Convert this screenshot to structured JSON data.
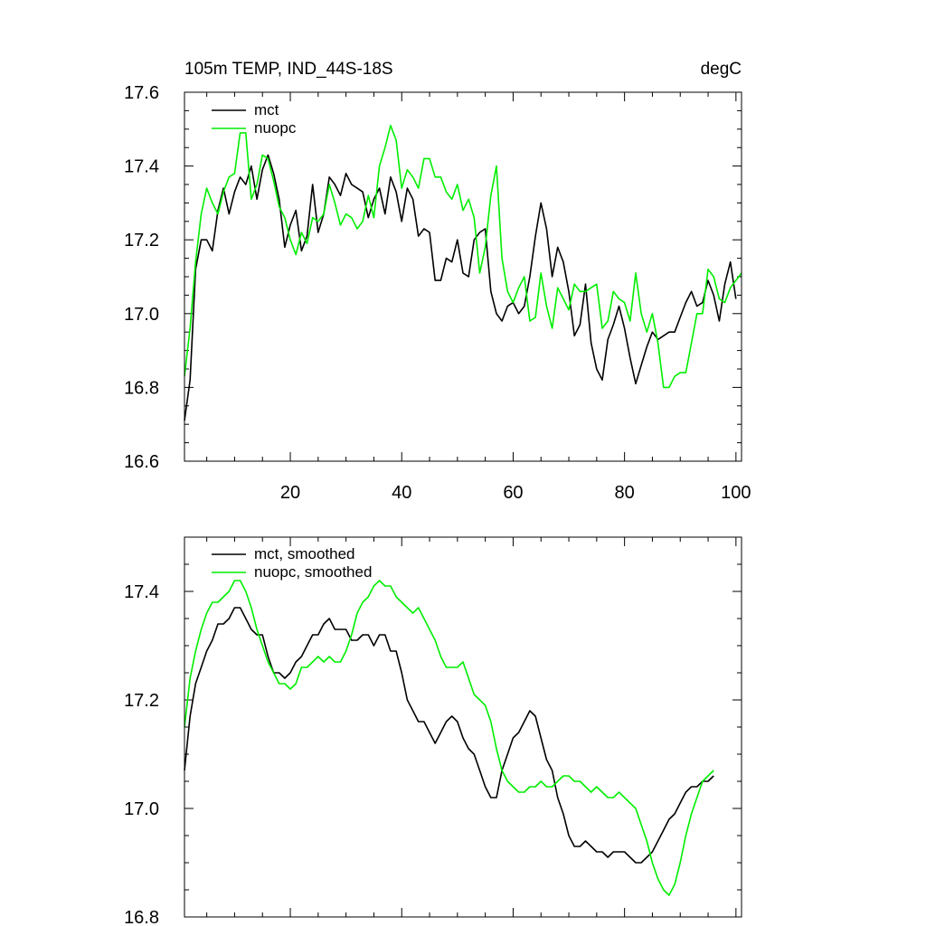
{
  "chart_data": [
    {
      "type": "line",
      "title": "105m TEMP, IND_44S-18S",
      "units": "degC",
      "xlim": [
        1,
        101
      ],
      "ylim": [
        16.6,
        17.6
      ],
      "x_ticks": [
        20,
        40,
        60,
        80,
        100
      ],
      "y_ticks": [
        16.6,
        16.8,
        17.0,
        17.2,
        17.4,
        17.6
      ],
      "y_tick_labels": [
        "16.6",
        "16.8",
        "17.0",
        "17.2",
        "17.4",
        "17.6"
      ],
      "grid": false,
      "legend_position": "top-left",
      "series": [
        {
          "name": "mct",
          "color": "#000000",
          "x_start": 1,
          "values": [
            16.71,
            16.82,
            17.12,
            17.2,
            17.2,
            17.17,
            17.28,
            17.34,
            17.27,
            17.33,
            17.37,
            17.35,
            17.4,
            17.31,
            17.39,
            17.43,
            17.38,
            17.31,
            17.18,
            17.24,
            17.28,
            17.17,
            17.21,
            17.35,
            17.22,
            17.27,
            17.37,
            17.35,
            17.32,
            17.38,
            17.35,
            17.34,
            17.33,
            17.26,
            17.31,
            17.34,
            17.27,
            17.37,
            17.33,
            17.25,
            17.34,
            17.31,
            17.21,
            17.23,
            17.22,
            17.09,
            17.09,
            17.15,
            17.14,
            17.2,
            17.11,
            17.1,
            17.2,
            17.22,
            17.23,
            17.06,
            17.0,
            16.98,
            17.02,
            17.03,
            17.0,
            17.02,
            17.1,
            17.21,
            17.3,
            17.23,
            17.1,
            17.18,
            17.14,
            17.06,
            16.94,
            16.97,
            17.08,
            16.92,
            16.85,
            16.82,
            16.93,
            16.97,
            17.02,
            16.96,
            16.88,
            16.81,
            16.86,
            16.91,
            16.95,
            16.93,
            16.94,
            16.95,
            16.95,
            16.99,
            17.03,
            17.06,
            17.02,
            17.03,
            17.09,
            17.05,
            16.98,
            17.08,
            17.14,
            17.04
          ]
        },
        {
          "name": "nuopc",
          "color": "#00ee00",
          "x_start": 1,
          "values": [
            16.83,
            16.96,
            17.14,
            17.27,
            17.34,
            17.3,
            17.27,
            17.33,
            17.37,
            17.38,
            17.49,
            17.49,
            17.31,
            17.35,
            17.43,
            17.42,
            17.36,
            17.29,
            17.26,
            17.2,
            17.16,
            17.22,
            17.19,
            17.26,
            17.25,
            17.27,
            17.35,
            17.3,
            17.24,
            17.27,
            17.26,
            17.23,
            17.25,
            17.32,
            17.26,
            17.4,
            17.45,
            17.51,
            17.47,
            17.34,
            17.39,
            17.37,
            17.34,
            17.42,
            17.42,
            17.37,
            17.37,
            17.33,
            17.31,
            17.35,
            17.28,
            17.31,
            17.26,
            17.11,
            17.18,
            17.32,
            17.4,
            17.15,
            17.06,
            17.03,
            17.07,
            17.1,
            16.98,
            16.99,
            17.11,
            17.02,
            16.96,
            17.07,
            17.04,
            17.01,
            17.08,
            17.06,
            17.06,
            17.07,
            17.08,
            16.96,
            16.98,
            17.06,
            17.04,
            17.03,
            16.98,
            17.11,
            17.0,
            16.95,
            17.0,
            16.92,
            16.8,
            16.8,
            16.83,
            16.84,
            16.84,
            16.92,
            17.0,
            17.0,
            17.12,
            17.1,
            17.04,
            17.03,
            17.07,
            17.09,
            17.11
          ]
        }
      ]
    },
    {
      "type": "line",
      "xlim": [
        1,
        101
      ],
      "ylim": [
        16.8,
        17.5
      ],
      "x_ticks": [
        20,
        40,
        60,
        80,
        100
      ],
      "y_ticks": [
        16.8,
        17.0,
        17.2,
        17.4
      ],
      "y_tick_labels": [
        "16.8",
        "17.0",
        "17.2",
        "17.4"
      ],
      "grid": false,
      "legend_position": "top-left",
      "series": [
        {
          "name": "mct, smoothed",
          "color": "#000000",
          "x_start": 1,
          "values": [
            17.07,
            17.17,
            17.23,
            17.26,
            17.29,
            17.31,
            17.34,
            17.34,
            17.35,
            17.37,
            17.37,
            17.35,
            17.33,
            17.32,
            17.32,
            17.28,
            17.25,
            17.25,
            17.24,
            17.25,
            17.27,
            17.28,
            17.3,
            17.32,
            17.32,
            17.34,
            17.35,
            17.33,
            17.33,
            17.33,
            17.31,
            17.31,
            17.32,
            17.32,
            17.3,
            17.32,
            17.32,
            17.29,
            17.29,
            17.25,
            17.2,
            17.18,
            17.16,
            17.16,
            17.14,
            17.12,
            17.14,
            17.16,
            17.17,
            17.16,
            17.13,
            17.11,
            17.1,
            17.07,
            17.04,
            17.02,
            17.02,
            17.07,
            17.1,
            17.13,
            17.14,
            17.16,
            17.18,
            17.17,
            17.13,
            17.09,
            17.07,
            17.02,
            16.99,
            16.95,
            16.93,
            16.93,
            16.94,
            16.93,
            16.92,
            16.92,
            16.91,
            16.92,
            16.92,
            16.92,
            16.91,
            16.9,
            16.9,
            16.91,
            16.92,
            16.94,
            16.96,
            16.98,
            16.99,
            17.01,
            17.03,
            17.04,
            17.04,
            17.05,
            17.05,
            17.06
          ]
        },
        {
          "name": "nuopc, smoothed",
          "color": "#00ee00",
          "x_start": 1,
          "values": [
            17.15,
            17.24,
            17.29,
            17.33,
            17.36,
            17.38,
            17.38,
            17.39,
            17.4,
            17.42,
            17.42,
            17.4,
            17.37,
            17.33,
            17.3,
            17.27,
            17.25,
            17.23,
            17.23,
            17.22,
            17.23,
            17.26,
            17.26,
            17.27,
            17.28,
            17.27,
            17.28,
            17.27,
            17.27,
            17.29,
            17.32,
            17.36,
            17.38,
            17.39,
            17.41,
            17.42,
            17.41,
            17.41,
            17.39,
            17.38,
            17.37,
            17.36,
            17.37,
            17.35,
            17.33,
            17.31,
            17.28,
            17.26,
            17.26,
            17.26,
            17.27,
            17.24,
            17.21,
            17.2,
            17.19,
            17.16,
            17.11,
            17.07,
            17.05,
            17.04,
            17.03,
            17.03,
            17.04,
            17.04,
            17.05,
            17.04,
            17.04,
            17.05,
            17.06,
            17.06,
            17.05,
            17.05,
            17.04,
            17.03,
            17.04,
            17.03,
            17.02,
            17.02,
            17.03,
            17.02,
            17.01,
            17.0,
            16.97,
            16.94,
            16.9,
            16.87,
            16.85,
            16.84,
            16.86,
            16.9,
            16.95,
            16.99,
            17.02,
            17.05,
            17.06,
            17.07
          ]
        }
      ]
    }
  ]
}
